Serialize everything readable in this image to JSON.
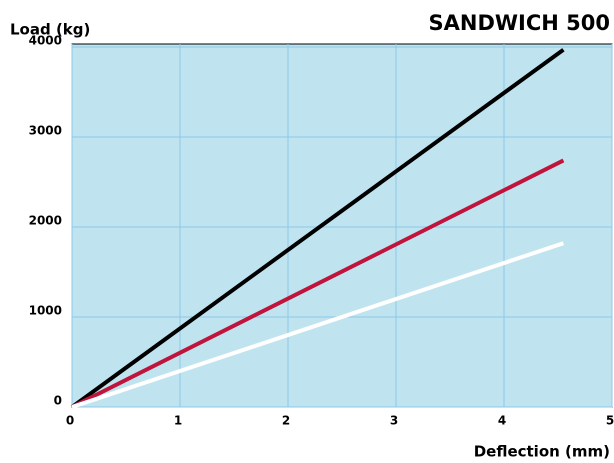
{
  "chart_data": {
    "type": "line",
    "title": "SANDWICH 500",
    "y_label": "Load (kg)",
    "x_label": "Deflection (mm)",
    "x": [
      0,
      4.55
    ],
    "series": [
      {
        "color": "#000000",
        "values": [
          0,
          3970
        ]
      },
      {
        "color": "#c0143c",
        "values": [
          0,
          2740
        ]
      },
      {
        "color": "#ffffff",
        "values": [
          0,
          1820
        ]
      }
    ],
    "xlim": [
      0,
      5
    ],
    "xticks": [
      0,
      1,
      2,
      3,
      4,
      5
    ],
    "ylim": [
      0,
      4000
    ],
    "yticks": [
      0,
      1000,
      2000,
      3000,
      4000
    ],
    "grid": true
  }
}
